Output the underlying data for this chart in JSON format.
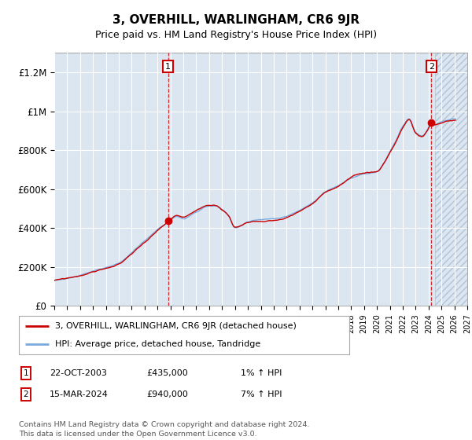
{
  "title": "3, OVERHILL, WARLINGHAM, CR6 9JR",
  "subtitle": "Price paid vs. HM Land Registry's House Price Index (HPI)",
  "ylabel_ticks": [
    "£0",
    "£200K",
    "£400K",
    "£600K",
    "£800K",
    "£1M",
    "£1.2M"
  ],
  "ytick_values": [
    0,
    200000,
    400000,
    600000,
    800000,
    1000000,
    1200000
  ],
  "ylim": [
    0,
    1300000
  ],
  "xlim_start": 1995.0,
  "xlim_end": 2027.0,
  "hpi_color": "#7aaadd",
  "price_color": "#cc0000",
  "bg_color": "#dce6f1",
  "hatch_color": "#b0c4d8",
  "marker1_x": 2003.81,
  "marker1_y": 435000,
  "marker2_x": 2024.21,
  "marker2_y": 940000,
  "annotation1": [
    "1",
    "22-OCT-2003",
    "£435,000",
    "1% ↑ HPI"
  ],
  "annotation2": [
    "2",
    "15-MAR-2024",
    "£940,000",
    "7% ↑ HPI"
  ],
  "legend1": "3, OVERHILL, WARLINGHAM, CR6 9JR (detached house)",
  "legend2": "HPI: Average price, detached house, Tandridge",
  "footer": "Contains HM Land Registry data © Crown copyright and database right 2024.\nThis data is licensed under the Open Government Licence v3.0."
}
